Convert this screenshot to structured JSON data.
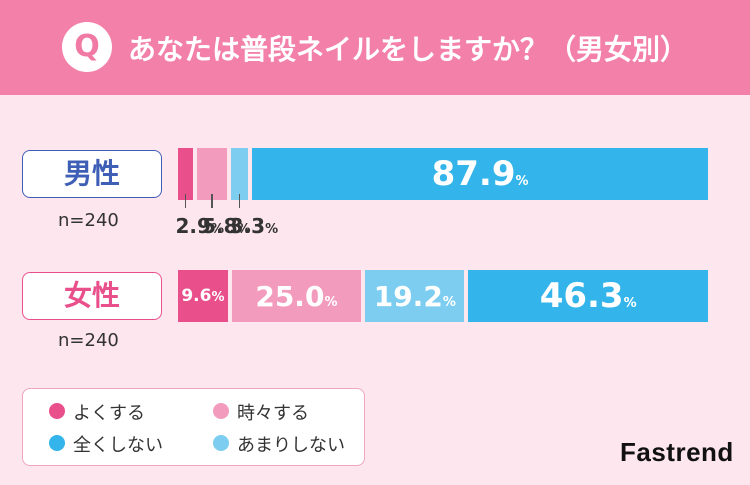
{
  "header": {
    "badge": "Q",
    "title": "あなたは普段ネイルをしますか？（男女別）"
  },
  "chart_data": {
    "type": "bar",
    "stacked": true,
    "orientation": "horizontal",
    "unit": "%",
    "title": "あなたは普段ネイルをしますか？（男女別）",
    "categories": [
      "男性",
      "女性"
    ],
    "sample_sizes": [
      "n=240",
      "n=240"
    ],
    "series": [
      {
        "name": "よくする",
        "color": "#e94f8b",
        "values": [
          2.9,
          9.6
        ]
      },
      {
        "name": "時々する",
        "color": "#f29bbd",
        "values": [
          5.8,
          25.0
        ]
      },
      {
        "name": "あまりしない",
        "color": "#7ccdf0",
        "values": [
          3.3,
          19.2
        ]
      },
      {
        "name": "全くしない",
        "color": "#33b4ea",
        "values": [
          87.9,
          46.3
        ]
      }
    ],
    "value_labels": [
      [
        "2.9",
        "5.8",
        "3.3",
        "87.9"
      ],
      [
        "9.6",
        "25.0",
        "19.2",
        "46.3"
      ]
    ],
    "legend_position": "bottom-left"
  },
  "legend": [
    {
      "label": "よくする",
      "color": "#e94f8b"
    },
    {
      "label": "時々する",
      "color": "#f29bbd"
    },
    {
      "label": "全くしない",
      "color": "#33b4ea"
    },
    {
      "label": "あまりしない",
      "color": "#7ccdf0"
    }
  ],
  "pct_symbol": "%",
  "brand": "Fastrend"
}
